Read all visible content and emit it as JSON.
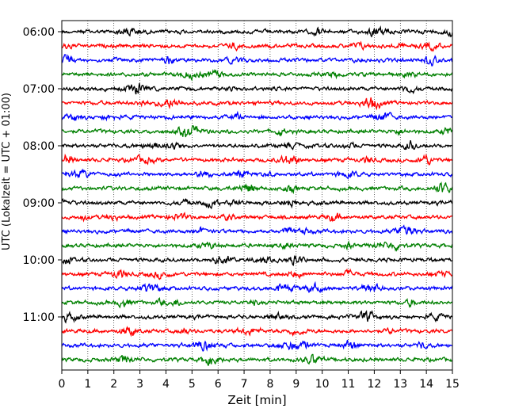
{
  "chart_data": {
    "type": "line",
    "title": "",
    "xlabel": "Zeit  [min]",
    "ylabel": "UTC (Lokalzeit = UTC + 01:00)",
    "xlim": [
      0,
      15
    ],
    "x_ticks": [
      "0",
      "1",
      "2",
      "3",
      "4",
      "5",
      "6",
      "7",
      "8",
      "9",
      "10",
      "11",
      "12",
      "13",
      "14",
      "15"
    ],
    "y_ticks": [
      "06:00",
      "07:00",
      "08:00",
      "09:00",
      "10:00",
      "11:00"
    ],
    "vertical_grid": true,
    "grid_style": "dotted",
    "trace_interval_minutes": 15,
    "first_trace": "06:00",
    "trace_count": 24,
    "trace_colors": [
      "#000000",
      "#ff0000",
      "#0000ff",
      "#008000"
    ]
  }
}
